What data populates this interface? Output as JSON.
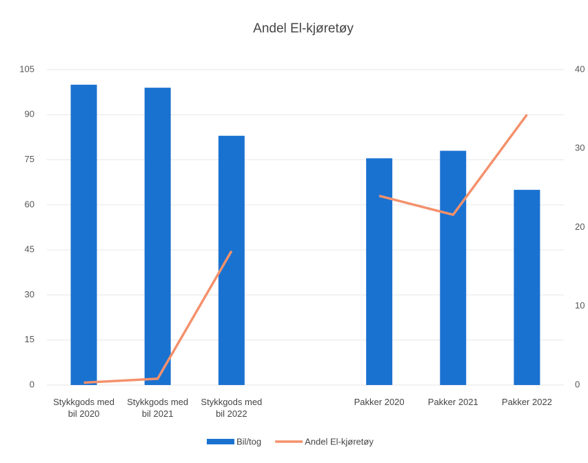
{
  "chart_data": {
    "type": "bar+line",
    "title": "Andel El-kjøretøy",
    "categories": [
      "Stykkgods med bil 2020",
      "Stykkgods med bil 2021",
      "Stykkgods med bil 2022",
      null,
      "Pakker 2020",
      "Pakker 2021",
      "Pakker 2022"
    ],
    "series": [
      {
        "name": "Bil/tog",
        "type": "bar",
        "color": "#1a72d0",
        "values": [
          100,
          99,
          83,
          null,
          75.5,
          78,
          65
        ]
      },
      {
        "name": "Andel El-kjøretøy",
        "type": "line",
        "axis": "y2",
        "color": "#f4916c",
        "values": [
          0.3,
          0.8,
          17,
          null,
          24,
          21.6,
          34.3
        ]
      }
    ],
    "ylim": [
      0,
      105
    ],
    "yticks": [
      0,
      15,
      30,
      45,
      60,
      75,
      90,
      105
    ],
    "y2lim": [
      0,
      40
    ],
    "y2ticks": [
      0,
      10,
      20,
      30,
      40
    ],
    "grid": true,
    "legend": "bottom"
  }
}
